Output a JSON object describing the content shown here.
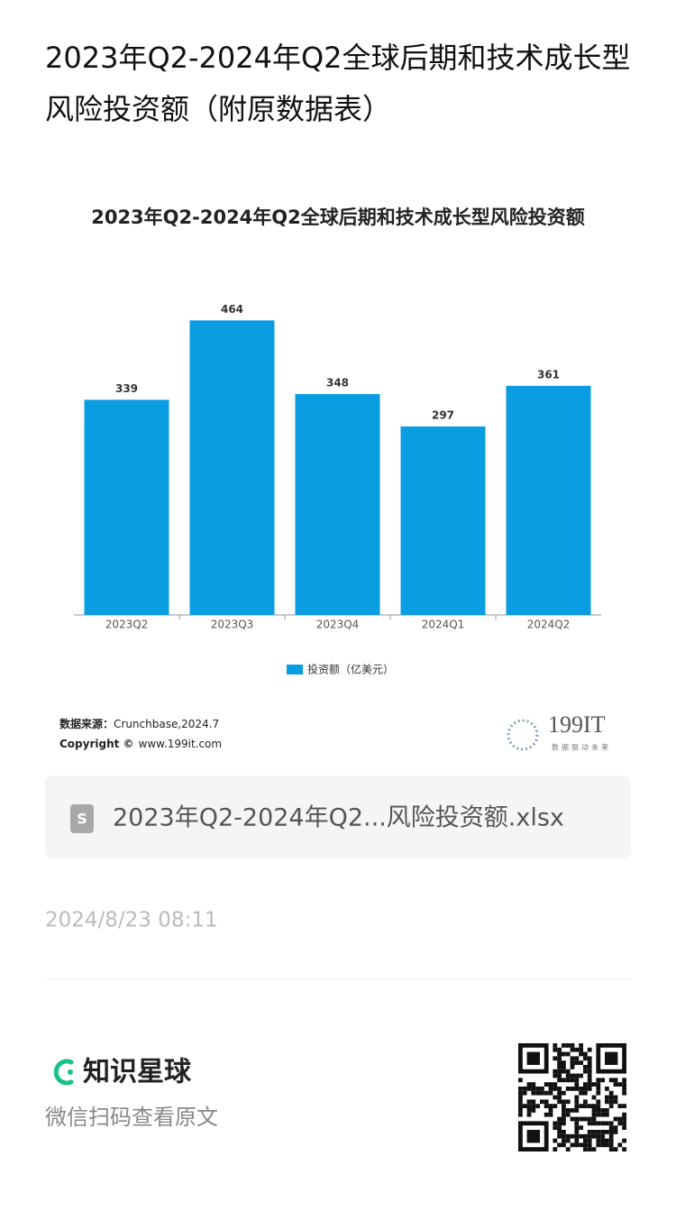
{
  "header": {
    "title": "2023年Q2-2024年Q2全球后期和技术成长型风险投资额（附原数据表）"
  },
  "chart_data": {
    "type": "bar",
    "title": "2023年Q2-2024年Q2全球后期和技术成长型风险投资额",
    "categories": [
      "2023Q2",
      "2023Q3",
      "2023Q4",
      "2024Q1",
      "2024Q2"
    ],
    "series": [
      {
        "name": "投资额（亿美元）",
        "color": "#0a9de2",
        "values": [
          339,
          464,
          348,
          297,
          361
        ]
      }
    ],
    "ylim": [
      0,
      500
    ],
    "source_label": "数据来源：",
    "source": "Crunchbase,2024.7",
    "copyright_label": "Copyright ©",
    "copyright": "www.199it.com"
  },
  "logo": {
    "text": "199IT",
    "tagline": "数据驱动未来"
  },
  "attachment": {
    "filename": "2023年Q2-2024年Q2...风险投资额.xlsx"
  },
  "timestamp": "2024/8/23 08:11",
  "footer": {
    "brand": "知识星球",
    "hint": "微信扫码查看原文"
  }
}
